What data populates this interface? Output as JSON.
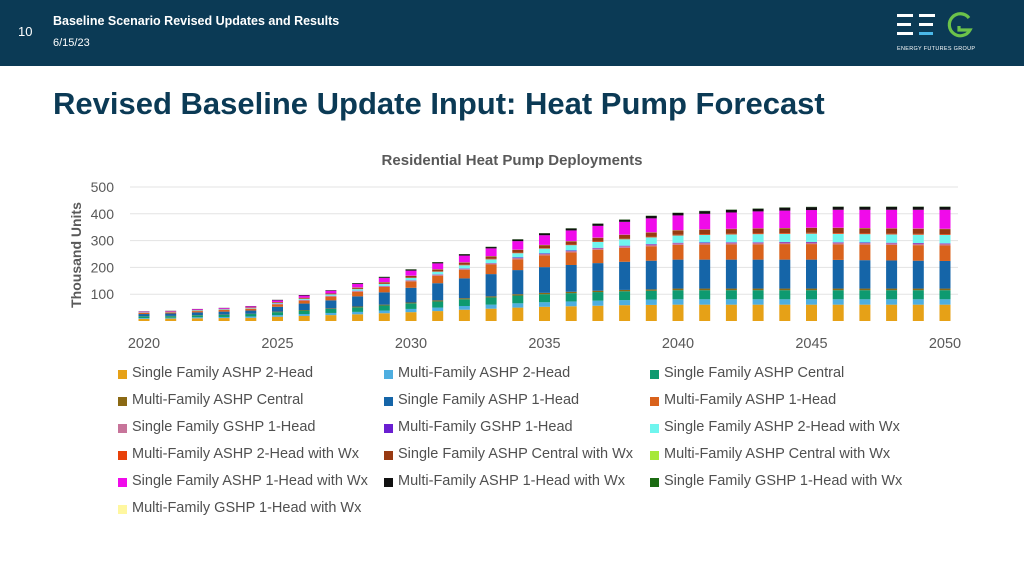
{
  "header": {
    "slide_number": "10",
    "title": "Baseline Scenario Revised Updates and Results",
    "date": "6/15/23",
    "logo_text": "ENERGY FUTURES GROUP"
  },
  "page_title": "Revised Baseline Update Input: Heat Pump Forecast",
  "chart_data": {
    "type": "bar",
    "stacked": true,
    "title": "Residential Heat Pump Deployments",
    "xlabel": "",
    "ylabel": "Thousand Units",
    "ylim": [
      0,
      500
    ],
    "yticks": [
      "100",
      "200",
      "300",
      "400",
      "500"
    ],
    "xtick_labels": [
      "2020",
      "2025",
      "2030",
      "2035",
      "2040",
      "2045",
      "2050"
    ],
    "categories": [
      "2020",
      "2021",
      "2022",
      "2023",
      "2024",
      "2025",
      "2026",
      "2027",
      "2028",
      "2029",
      "2030",
      "2031",
      "2032",
      "2033",
      "2034",
      "2035",
      "2036",
      "2037",
      "2038",
      "2039",
      "2040",
      "2041",
      "2042",
      "2043",
      "2044",
      "2045",
      "2046",
      "2047",
      "2048",
      "2049",
      "2050"
    ],
    "series": [
      {
        "name": "Single Family ASHP 2-Head",
        "color": "#e6a117",
        "values": [
          8,
          9,
          10,
          11,
          12,
          16,
          19,
          22,
          25,
          29,
          33,
          37,
          42,
          46,
          50,
          53,
          55,
          57,
          59,
          60,
          61,
          61,
          61,
          61,
          61,
          61,
          61,
          61,
          61,
          61,
          61
        ]
      },
      {
        "name": "Multi-Family ASHP 2-Head",
        "color": "#4eaee0",
        "values": [
          3,
          3,
          4,
          4,
          5,
          6,
          7,
          8,
          9,
          10,
          12,
          13,
          14,
          15,
          16,
          17,
          18,
          19,
          19,
          20,
          20,
          20,
          20,
          20,
          20,
          20,
          20,
          20,
          20,
          20,
          20
        ]
      },
      {
        "name": "Single Family ASHP Central",
        "color": "#0e9a70",
        "values": [
          6,
          6,
          7,
          8,
          9,
          11,
          13,
          15,
          17,
          19,
          21,
          23,
          25,
          27,
          29,
          30,
          31,
          32,
          33,
          33,
          34,
          34,
          34,
          34,
          34,
          34,
          34,
          34,
          34,
          34,
          34
        ]
      },
      {
        "name": "Multi-Family ASHP Central",
        "color": "#8b6914",
        "values": [
          1,
          1,
          1,
          1,
          1,
          2,
          2,
          2,
          3,
          3,
          3,
          4,
          4,
          4,
          5,
          5,
          5,
          5,
          5,
          5,
          6,
          6,
          6,
          6,
          6,
          6,
          6,
          6,
          6,
          6,
          6
        ]
      },
      {
        "name": "Single Family ASHP 1-Head",
        "color": "#1565a8",
        "values": [
          8,
          9,
          10,
          11,
          12,
          18,
          24,
          30,
          38,
          46,
          55,
          64,
          74,
          83,
          90,
          96,
          100,
          103,
          105,
          107,
          108,
          108,
          108,
          108,
          108,
          108,
          107,
          106,
          105,
          104,
          103
        ]
      },
      {
        "name": "Multi-Family ASHP 1-Head",
        "color": "#d9621c",
        "values": [
          4,
          4,
          5,
          6,
          7,
          9,
          11,
          14,
          17,
          20,
          24,
          28,
          32,
          36,
          40,
          44,
          47,
          50,
          52,
          54,
          55,
          56,
          57,
          57,
          58,
          58,
          58,
          58,
          58,
          58,
          58
        ]
      },
      {
        "name": "Single Family GSHP 1-Head",
        "color": "#c7749a",
        "values": [
          1,
          1,
          1,
          1,
          1,
          2,
          2,
          2,
          3,
          3,
          3,
          4,
          4,
          4,
          5,
          5,
          5,
          5,
          6,
          6,
          6,
          6,
          6,
          6,
          6,
          6,
          6,
          6,
          6,
          6,
          6
        ]
      },
      {
        "name": "Multi-Family GSHP 1-Head",
        "color": "#6a1fd1",
        "values": [
          0,
          0,
          0,
          0,
          0,
          1,
          1,
          1,
          1,
          1,
          1,
          1,
          1,
          1,
          2,
          2,
          2,
          2,
          2,
          2,
          2,
          2,
          2,
          2,
          2,
          2,
          2,
          2,
          2,
          2,
          2
        ]
      },
      {
        "name": "Single Family ASHP 2-Head with Wx",
        "color": "#6ff5ee",
        "values": [
          1,
          1,
          2,
          2,
          2,
          3,
          4,
          5,
          6,
          7,
          9,
          10,
          12,
          14,
          16,
          18,
          20,
          22,
          24,
          25,
          27,
          28,
          29,
          30,
          30,
          31,
          31,
          31,
          31,
          31,
          31
        ]
      },
      {
        "name": "Multi-Family ASHP 2-Head with Wx",
        "color": "#e8410a",
        "values": [
          0,
          0,
          0,
          0,
          0,
          1,
          1,
          1,
          1,
          1,
          1,
          1,
          2,
          2,
          2,
          2,
          2,
          2,
          2,
          3,
          3,
          3,
          3,
          3,
          3,
          3,
          3,
          3,
          3,
          3,
          3
        ]
      },
      {
        "name": "Single Family ASHP Central with Wx",
        "color": "#983a12",
        "values": [
          1,
          1,
          1,
          1,
          2,
          2,
          3,
          3,
          4,
          5,
          6,
          7,
          8,
          9,
          10,
          11,
          12,
          13,
          14,
          15,
          16,
          17,
          17,
          18,
          18,
          18,
          19,
          19,
          19,
          19,
          19
        ]
      },
      {
        "name": "Multi-Family ASHP Central with Wx",
        "color": "#a6e83a",
        "values": [
          0,
          0,
          0,
          0,
          0,
          0,
          0,
          0,
          1,
          1,
          1,
          1,
          1,
          1,
          1,
          1,
          1,
          1,
          1,
          1,
          1,
          1,
          1,
          1,
          1,
          1,
          1,
          1,
          1,
          1,
          1
        ]
      },
      {
        "name": "Single Family ASHP 1-Head with Wx",
        "color": "#f00bea",
        "values": [
          2,
          2,
          3,
          3,
          4,
          6,
          8,
          10,
          13,
          16,
          19,
          22,
          25,
          29,
          32,
          36,
          40,
          44,
          48,
          52,
          55,
          58,
          61,
          63,
          65,
          66,
          67,
          68,
          69,
          70,
          71
        ]
      },
      {
        "name": "Multi-Family ASHP 1-Head with Wx",
        "color": "#111111",
        "values": [
          1,
          1,
          1,
          1,
          1,
          2,
          2,
          2,
          3,
          3,
          4,
          4,
          5,
          5,
          6,
          7,
          7,
          8,
          8,
          9,
          9,
          10,
          10,
          10,
          11,
          11,
          11,
          11,
          11,
          11,
          11
        ]
      },
      {
        "name": "Single Family GSHP 1-Head with Wx",
        "color": "#1b6b12",
        "values": [
          0,
          0,
          0,
          0,
          0,
          0,
          0,
          0,
          0,
          1,
          1,
          1,
          1,
          1,
          1,
          1,
          1,
          1,
          1,
          1,
          1,
          1,
          1,
          1,
          1,
          1,
          1,
          1,
          1,
          1,
          1
        ]
      },
      {
        "name": "Multi-Family GSHP 1-Head with Wx",
        "color": "#fff7a0",
        "values": [
          0,
          0,
          0,
          0,
          0,
          0,
          0,
          0,
          0,
          0,
          0,
          0,
          0,
          0,
          0,
          0,
          0,
          0,
          0,
          0,
          0,
          0,
          0,
          0,
          0,
          0,
          0,
          0,
          0,
          0,
          0
        ]
      }
    ]
  }
}
